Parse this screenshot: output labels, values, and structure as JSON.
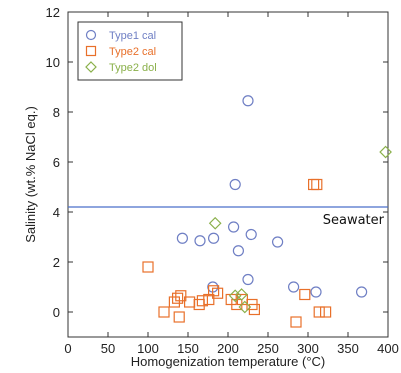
{
  "chart_data": {
    "type": "scatter",
    "xlabel": "Homogenization temperature (°C)",
    "ylabel": "Salinity (wt.% NaCl eq.)",
    "xlim": [
      0,
      400
    ],
    "ylim": [
      -1,
      12
    ],
    "xticks": [
      0,
      50,
      100,
      150,
      200,
      250,
      300,
      350,
      400
    ],
    "yticks": [
      0,
      2,
      4,
      6,
      8,
      10,
      12
    ],
    "grid": false,
    "legend_position": "top-left",
    "series": [
      {
        "name": "Type1 cal",
        "marker": "circle",
        "color": "#6f7fc4",
        "points": [
          [
            143,
            2.95
          ],
          [
            165,
            2.85
          ],
          [
            182,
            2.95
          ],
          [
            207,
            3.4
          ],
          [
            213,
            2.45
          ],
          [
            229,
            3.1
          ],
          [
            262,
            2.8
          ],
          [
            209,
            5.1
          ],
          [
            225,
            8.45
          ],
          [
            181,
            1.0
          ],
          [
            225,
            1.3
          ],
          [
            282,
            1.0
          ],
          [
            310,
            0.8
          ],
          [
            367,
            0.8
          ]
        ]
      },
      {
        "name": "Type2 cal",
        "marker": "square",
        "color": "#e8702a",
        "points": [
          [
            100,
            1.8
          ],
          [
            120,
            0.0
          ],
          [
            133,
            0.4
          ],
          [
            137,
            0.55
          ],
          [
            141,
            0.65
          ],
          [
            139,
            -0.2
          ],
          [
            152,
            0.4
          ],
          [
            164,
            0.3
          ],
          [
            168,
            0.45
          ],
          [
            176,
            0.5
          ],
          [
            182,
            0.85
          ],
          [
            187,
            0.75
          ],
          [
            204,
            0.5
          ],
          [
            211,
            0.3
          ],
          [
            218,
            0.5
          ],
          [
            230,
            0.3
          ],
          [
            233,
            0.1
          ],
          [
            285,
            -0.4
          ],
          [
            296,
            0.7
          ],
          [
            307,
            5.1
          ],
          [
            311,
            5.1
          ],
          [
            314,
            0.0
          ],
          [
            322,
            0.0
          ]
        ]
      },
      {
        "name": "Type2 dol",
        "marker": "diamond",
        "color": "#8ab04a",
        "points": [
          [
            184,
            3.55
          ],
          [
            209,
            0.65
          ],
          [
            217,
            0.7
          ],
          [
            221,
            0.2
          ],
          [
            397,
            6.4
          ]
        ]
      }
    ],
    "reference_lines": [
      {
        "y": 4.2,
        "label": "Seawater",
        "color": "#4a6fc9"
      }
    ]
  },
  "colors": {
    "axis": "#333333",
    "type1": "#6f7fc4",
    "type2_cal": "#e8702a",
    "type2_dol": "#8ab04a",
    "seawater": "#4a6fc9"
  }
}
